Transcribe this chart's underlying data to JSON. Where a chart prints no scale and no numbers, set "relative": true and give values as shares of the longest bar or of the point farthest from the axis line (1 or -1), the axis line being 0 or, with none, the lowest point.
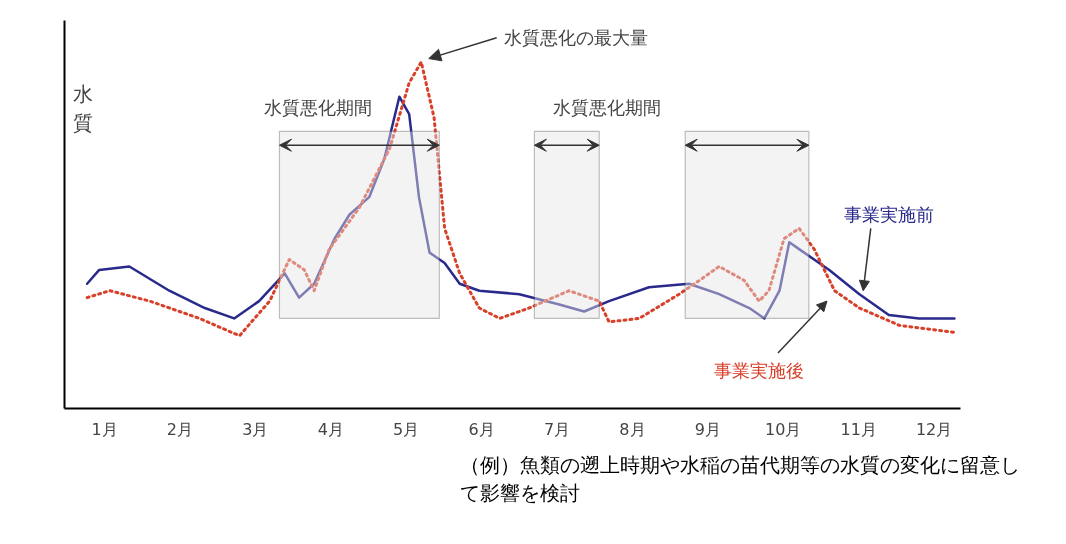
{
  "chart_data": {
    "type": "line",
    "relative": true,
    "ylabel": "水質",
    "xlim": [
      0.47,
      12.35
    ],
    "xticks": [
      {
        "value": 1,
        "label": "1月"
      },
      {
        "value": 2,
        "label": "2月"
      },
      {
        "value": 3,
        "label": "3月"
      },
      {
        "value": 4,
        "label": "4月"
      },
      {
        "value": 5,
        "label": "5月"
      },
      {
        "value": 6,
        "label": "6月"
      },
      {
        "value": 7,
        "label": "7月"
      },
      {
        "value": 8,
        "label": "8月"
      },
      {
        "value": 9,
        "label": "9月"
      },
      {
        "value": 10,
        "label": "10月"
      },
      {
        "value": 11,
        "label": "11月"
      },
      {
        "value": 12,
        "label": "12月"
      }
    ],
    "tick_labels": "x",
    "grid": false,
    "legend": false,
    "series": [
      {
        "name": "事業実施前",
        "color": "#2a2a8c",
        "line_style": "solid",
        "x": [
          0.77,
          0.93,
          1.33,
          1.86,
          2.33,
          2.72,
          3.05,
          3.39,
          3.58,
          3.78,
          4.05,
          4.25,
          4.51,
          4.71,
          4.91,
          5.04,
          5.17,
          5.31,
          5.51,
          5.71,
          5.97,
          6.5,
          7.03,
          7.36,
          7.69,
          8.22,
          8.75,
          9.15,
          9.55,
          9.75,
          9.95,
          10.08,
          10.21,
          10.61,
          11.01,
          11.4,
          11.8,
          12.27
        ],
        "values": [
          0.36,
          0.4,
          0.41,
          0.34,
          0.29,
          0.26,
          0.31,
          0.39,
          0.32,
          0.36,
          0.49,
          0.56,
          0.61,
          0.72,
          0.9,
          0.85,
          0.61,
          0.45,
          0.42,
          0.36,
          0.34,
          0.33,
          0.3,
          0.28,
          0.31,
          0.35,
          0.36,
          0.33,
          0.29,
          0.26,
          0.34,
          0.48,
          0.46,
          0.4,
          0.33,
          0.27,
          0.26,
          0.26
        ]
      },
      {
        "name": "事業実施後",
        "color": "#d9402a",
        "line_style": "dotted",
        "x": [
          0.77,
          1.07,
          1.6,
          2.26,
          2.79,
          3.19,
          3.45,
          3.65,
          3.78,
          3.98,
          4.38,
          4.78,
          5.04,
          5.2,
          5.37,
          5.51,
          5.71,
          5.97,
          6.24,
          6.63,
          7.16,
          7.56,
          7.69,
          8.09,
          8.62,
          8.89,
          9.15,
          9.48,
          9.68,
          9.81,
          10.01,
          10.21,
          10.41,
          10.68,
          11.01,
          11.54,
          12.27
        ],
        "values": [
          0.32,
          0.34,
          0.31,
          0.26,
          0.21,
          0.31,
          0.43,
          0.4,
          0.34,
          0.46,
          0.58,
          0.75,
          0.94,
          1.0,
          0.84,
          0.52,
          0.39,
          0.29,
          0.26,
          0.29,
          0.34,
          0.31,
          0.25,
          0.26,
          0.33,
          0.37,
          0.41,
          0.37,
          0.31,
          0.34,
          0.49,
          0.52,
          0.46,
          0.34,
          0.29,
          0.24,
          0.22
        ]
      }
    ],
    "bands": [
      {
        "axis": "x",
        "from": 3.32,
        "to": 5.44,
        "label": "水質悪化期間"
      },
      {
        "axis": "x",
        "from": 6.7,
        "to": 7.56,
        "label": "水質悪化期間"
      },
      {
        "axis": "x",
        "from": 8.7,
        "to": 10.34,
        "label": null
      }
    ],
    "annotations": [
      {
        "text": "水質悪化の最大量",
        "x": 5.2,
        "y": 1.0
      },
      "（例）魚類の遡上時期や水稲の苗代期等の水質の変化に留意して影響を検討"
    ]
  }
}
